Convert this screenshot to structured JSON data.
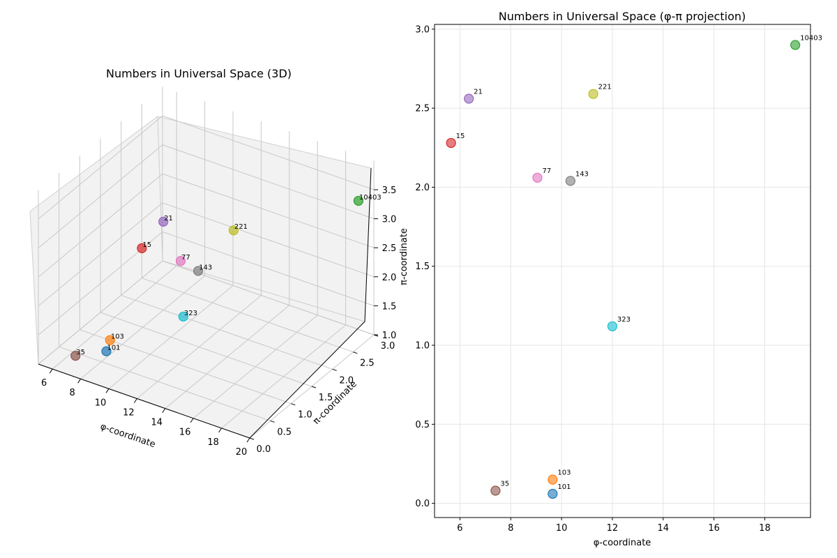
{
  "chart_data": [
    {
      "type": "scatter",
      "title": "Numbers in Universal Space (3D)",
      "xlabel": "φ-coordinate",
      "ylabel": "π-coordinate",
      "zlabel": "",
      "xlim": [
        5,
        20
      ],
      "ylim": [
        0,
        3
      ],
      "zlim": [
        1,
        3.5
      ],
      "xticks": [
        "6",
        "8",
        "10",
        "12",
        "14",
        "16",
        "18",
        "20"
      ],
      "yticks": [
        "0.0",
        "0.5",
        "1.0",
        "1.5",
        "2.0",
        "2.5",
        "3.0"
      ],
      "zticks": [
        "1.0",
        "1.5",
        "2.0",
        "2.5",
        "3.0",
        "3.5"
      ],
      "grid": true,
      "points": [
        {
          "label": "101",
          "x": 9.65,
          "y": 0.06,
          "z": 1.58,
          "color": "#1f77b4"
        },
        {
          "label": "103",
          "x": 9.65,
          "y": 0.15,
          "z": 1.72,
          "color": "#ff7f0e"
        },
        {
          "label": "10403",
          "x": 19.2,
          "y": 2.9,
          "z": 3.3,
          "color": "#2ca02c"
        },
        {
          "label": "15",
          "x": 5.65,
          "y": 2.28,
          "z": 1.7,
          "color": "#d62728"
        },
        {
          "label": "21",
          "x": 6.35,
          "y": 2.56,
          "z": 2.05,
          "color": "#9467bd"
        },
        {
          "label": "35",
          "x": 7.4,
          "y": 0.08,
          "z": 1.3,
          "color": "#8c564b"
        },
        {
          "label": "77",
          "x": 9.05,
          "y": 2.06,
          "z": 1.9,
          "color": "#e377c2"
        },
        {
          "label": "143",
          "x": 10.35,
          "y": 2.04,
          "z": 1.85,
          "color": "#7f7f7f"
        },
        {
          "label": "221",
          "x": 11.25,
          "y": 2.59,
          "z": 2.3,
          "color": "#bcbd22"
        },
        {
          "label": "323",
          "x": 12.0,
          "y": 1.12,
          "z": 1.75,
          "color": "#17becf"
        }
      ]
    },
    {
      "type": "scatter",
      "title": "Numbers in Universal Space (φ-π projection)",
      "xlabel": "φ-coordinate",
      "ylabel": "π-coordinate",
      "xlim": [
        5,
        19.8
      ],
      "ylim": [
        -0.09,
        3.03
      ],
      "xticks": [
        "6",
        "8",
        "10",
        "12",
        "14",
        "16",
        "18"
      ],
      "yticks": [
        "0.0",
        "0.5",
        "1.0",
        "1.5",
        "2.0",
        "2.5",
        "3.0"
      ],
      "grid": true,
      "points": [
        {
          "label": "101",
          "x": 9.65,
          "y": 0.06,
          "color": "#1f77b4"
        },
        {
          "label": "103",
          "x": 9.65,
          "y": 0.15,
          "color": "#ff7f0e"
        },
        {
          "label": "10403",
          "x": 19.2,
          "y": 2.9,
          "color": "#2ca02c"
        },
        {
          "label": "15",
          "x": 5.65,
          "y": 2.28,
          "color": "#d62728"
        },
        {
          "label": "21",
          "x": 6.35,
          "y": 2.56,
          "color": "#9467bd"
        },
        {
          "label": "35",
          "x": 7.4,
          "y": 0.08,
          "color": "#8c564b"
        },
        {
          "label": "77",
          "x": 9.05,
          "y": 2.06,
          "color": "#e377c2"
        },
        {
          "label": "143",
          "x": 10.35,
          "y": 2.04,
          "color": "#7f7f7f"
        },
        {
          "label": "221",
          "x": 11.25,
          "y": 2.59,
          "color": "#bcbd22"
        },
        {
          "label": "323",
          "x": 12.0,
          "y": 1.12,
          "color": "#17becf"
        }
      ]
    }
  ]
}
